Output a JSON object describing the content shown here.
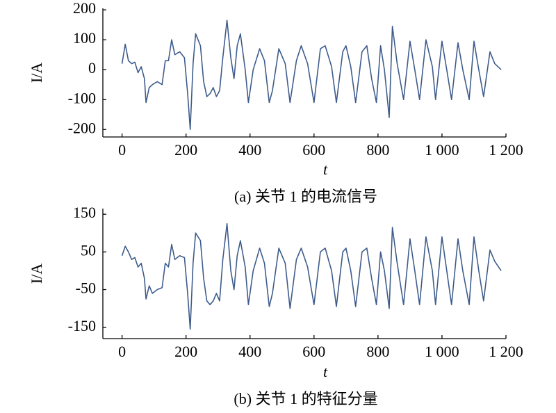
{
  "chart_data": [
    {
      "type": "line",
      "title": "(a) 关节 1 的电流信号",
      "xlabel": "t",
      "ylabel": "I/A",
      "color": "#3e5c8c",
      "x": [
        0,
        10,
        20,
        30,
        40,
        50,
        60,
        70,
        75,
        85,
        95,
        110,
        125,
        135,
        145,
        155,
        165,
        180,
        195,
        205,
        213,
        222,
        230,
        245,
        255,
        265,
        275,
        285,
        295,
        305,
        315,
        328,
        340,
        350,
        360,
        370,
        385,
        395,
        410,
        430,
        445,
        460,
        470,
        490,
        510,
        525,
        545,
        560,
        580,
        600,
        620,
        635,
        655,
        670,
        690,
        700,
        715,
        730,
        750,
        765,
        780,
        795,
        808,
        820,
        835,
        845,
        860,
        880,
        900,
        915,
        930,
        950,
        970,
        980,
        1000,
        1015,
        1030,
        1050,
        1065,
        1085,
        1100,
        1115,
        1130,
        1150,
        1165,
        1185
      ],
      "values": [
        20,
        85,
        30,
        20,
        25,
        -10,
        10,
        -30,
        -110,
        -60,
        -50,
        -40,
        -50,
        30,
        30,
        100,
        50,
        60,
        40,
        -80,
        -200,
        20,
        120,
        80,
        -40,
        -90,
        -80,
        -60,
        -90,
        -70,
        40,
        165,
        40,
        -30,
        80,
        120,
        0,
        -110,
        0,
        70,
        30,
        -110,
        -70,
        70,
        20,
        -110,
        30,
        80,
        20,
        -110,
        70,
        80,
        10,
        -110,
        60,
        80,
        10,
        -110,
        60,
        80,
        -30,
        -110,
        80,
        0,
        -160,
        145,
        20,
        -100,
        95,
        0,
        -100,
        100,
        10,
        -100,
        95,
        0,
        -100,
        90,
        0,
        -100,
        95,
        0,
        -90,
        60,
        20,
        0
      ],
      "xlim": [
        -60,
        1200
      ],
      "xticks": [
        0,
        200,
        400,
        600,
        800,
        {
          "value": 1000,
          "label": "1 000"
        },
        {
          "value": 1200,
          "label": "1 200"
        }
      ],
      "ylim": [
        -225,
        205
      ],
      "yticks": [
        -200,
        -100,
        0,
        100,
        200
      ]
    },
    {
      "type": "line",
      "title": "(b) 关节 1 的特征分量",
      "xlabel": "t",
      "ylabel": "I/A",
      "color": "#3e5c8c",
      "x": [
        0,
        10,
        20,
        30,
        40,
        50,
        60,
        70,
        75,
        85,
        95,
        110,
        125,
        135,
        145,
        155,
        165,
        180,
        195,
        205,
        213,
        222,
        230,
        245,
        255,
        265,
        275,
        285,
        295,
        305,
        315,
        328,
        340,
        350,
        360,
        370,
        385,
        395,
        410,
        430,
        445,
        460,
        470,
        490,
        510,
        525,
        545,
        560,
        580,
        600,
        620,
        635,
        655,
        670,
        690,
        700,
        715,
        730,
        750,
        765,
        780,
        795,
        808,
        820,
        835,
        845,
        860,
        880,
        900,
        915,
        930,
        950,
        970,
        980,
        1000,
        1015,
        1030,
        1050,
        1065,
        1085,
        1100,
        1115,
        1130,
        1150,
        1165,
        1185
      ],
      "values": [
        40,
        65,
        50,
        30,
        35,
        10,
        20,
        -20,
        -75,
        -40,
        -60,
        -50,
        -45,
        20,
        10,
        70,
        30,
        40,
        35,
        -60,
        -155,
        20,
        100,
        80,
        -20,
        -80,
        -90,
        -80,
        -60,
        -80,
        30,
        125,
        0,
        -50,
        40,
        80,
        10,
        -90,
        0,
        60,
        20,
        -95,
        -60,
        60,
        20,
        -100,
        30,
        60,
        10,
        -90,
        50,
        60,
        0,
        -95,
        50,
        60,
        0,
        -95,
        50,
        60,
        -20,
        -90,
        50,
        0,
        -100,
        115,
        20,
        -90,
        85,
        0,
        -90,
        90,
        0,
        -90,
        90,
        0,
        -90,
        85,
        0,
        -90,
        90,
        0,
        -80,
        55,
        25,
        0
      ],
      "xlim": [
        -60,
        1200
      ],
      "xticks": [
        0,
        200,
        400,
        600,
        800,
        {
          "value": 1000,
          "label": "1 000"
        },
        {
          "value": 1200,
          "label": "1 200"
        }
      ],
      "ylim": [
        -180,
        165
      ],
      "yticks": [
        -150,
        -50,
        50,
        150
      ]
    }
  ]
}
